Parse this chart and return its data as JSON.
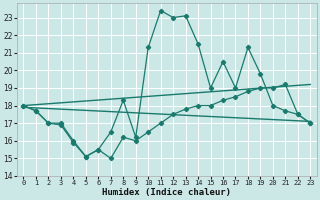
{
  "xlabel": "Humidex (Indice chaleur)",
  "bg_color": "#cce8e6",
  "grid_color": "#ffffff",
  "line_color": "#1a7a6e",
  "xlim": [
    -0.5,
    23.5
  ],
  "ylim": [
    14,
    23.8
  ],
  "yticks": [
    14,
    15,
    16,
    17,
    18,
    19,
    20,
    21,
    22,
    23
  ],
  "xticks": [
    0,
    1,
    2,
    3,
    4,
    5,
    6,
    7,
    8,
    9,
    10,
    11,
    12,
    13,
    14,
    15,
    16,
    17,
    18,
    19,
    20,
    21,
    22,
    23
  ],
  "line1_x": [
    0,
    1,
    2,
    3,
    4,
    5,
    6,
    7,
    8,
    9,
    10,
    11,
    12,
    13,
    14,
    15,
    16,
    17,
    18,
    19,
    20,
    21,
    22,
    23
  ],
  "line1_y": [
    18.0,
    17.7,
    17.0,
    16.9,
    15.9,
    15.1,
    15.5,
    15.0,
    16.2,
    16.0,
    16.5,
    17.0,
    17.5,
    17.8,
    18.0,
    18.0,
    18.3,
    18.5,
    18.8,
    19.0,
    19.0,
    19.2,
    17.5,
    17.0
  ],
  "line2_x": [
    0,
    1,
    2,
    3,
    4,
    5,
    6,
    7,
    8,
    9,
    10,
    11,
    12,
    13,
    14,
    15,
    16,
    17,
    18,
    19,
    20,
    21,
    22,
    23
  ],
  "line2_y": [
    18.0,
    17.7,
    17.0,
    17.0,
    16.0,
    15.1,
    15.5,
    16.5,
    18.3,
    16.2,
    21.3,
    23.4,
    23.0,
    23.1,
    21.5,
    19.0,
    20.5,
    19.0,
    21.3,
    19.8,
    18.0,
    17.7,
    17.5,
    17.0
  ],
  "line3_x": [
    0,
    23
  ],
  "line3_y": [
    17.9,
    17.1
  ],
  "line4_x": [
    0,
    23
  ],
  "line4_y": [
    18.0,
    19.2
  ]
}
